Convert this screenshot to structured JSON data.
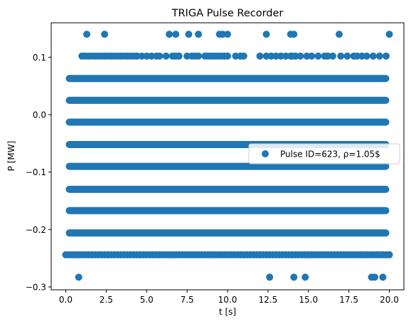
{
  "chart_data": {
    "type": "scatter",
    "title": "TRIGA Pulse Recorder",
    "xlabel": "t [s]",
    "ylabel": "P [MW]",
    "xlim": [
      -0.9,
      20.9
    ],
    "ylim": [
      -0.305,
      0.16
    ],
    "xticks": [
      0.0,
      2.5,
      5.0,
      7.5,
      10.0,
      12.5,
      15.0,
      17.5,
      20.0
    ],
    "xtick_labels": [
      "0.0",
      "2.5",
      "5.0",
      "7.5",
      "10.0",
      "12.5",
      "15.0",
      "17.5",
      "20.0"
    ],
    "yticks": [
      0.1,
      0.0,
      -0.1,
      -0.2,
      -0.3
    ],
    "ytick_labels": [
      "0.1",
      "0.0",
      "−0.1",
      "−0.2",
      "−0.3"
    ],
    "grid": false,
    "legend_position": "center-right",
    "color": "#1f77b4",
    "series": [
      {
        "name": "Pulse ID=623, ρ=1.05$",
        "dense_levels": [
          {
            "y": 0.063,
            "x_start": 0.0,
            "x_end": 20.0
          },
          {
            "y": 0.025,
            "x_start": 0.0,
            "x_end": 20.0
          },
          {
            "y": -0.013,
            "x_start": 0.0,
            "x_end": 20.0
          },
          {
            "y": -0.052,
            "x_start": 0.0,
            "x_end": 20.0
          },
          {
            "y": -0.09,
            "x_start": 0.0,
            "x_end": 20.0
          },
          {
            "y": -0.13,
            "x_start": 0.0,
            "x_end": 20.0
          },
          {
            "y": -0.167,
            "x_start": 0.0,
            "x_end": 20.0
          },
          {
            "y": -0.206,
            "x_start": 0.0,
            "x_end": 20.0
          }
        ],
        "level_points": [
          {
            "y": -0.244,
            "x": [
              0.0,
              0.2,
              0.4,
              0.6,
              0.8,
              1.0,
              1.2,
              1.4,
              1.6,
              1.8,
              2.0,
              2.2,
              2.4,
              2.6,
              2.8,
              3.0,
              3.2,
              3.4,
              3.6,
              3.8,
              4.0,
              4.2,
              4.4,
              4.6,
              4.8,
              5.0,
              5.2,
              5.4,
              5.6,
              5.8,
              6.0,
              6.2,
              6.4,
              6.6,
              6.8,
              7.0,
              7.2,
              7.4,
              7.6,
              7.8,
              8.0,
              8.2,
              8.4,
              8.6,
              8.8,
              9.0,
              9.2,
              9.4,
              9.6,
              9.8,
              10.0,
              10.2,
              10.4,
              10.6,
              10.8,
              11.0,
              11.2,
              11.4,
              11.6,
              11.8,
              12.0,
              12.2,
              12.4,
              12.6,
              12.8,
              13.0,
              13.2,
              13.4,
              13.6,
              13.8,
              14.0,
              14.2,
              14.4,
              14.6,
              14.8,
              15.0,
              15.2,
              15.4,
              15.6,
              15.8,
              16.0,
              16.2,
              16.4,
              16.6,
              16.8,
              17.0,
              17.2,
              17.4,
              17.6,
              17.8,
              18.0,
              18.2,
              18.4,
              18.6,
              18.8,
              19.0,
              19.2,
              19.4,
              19.6,
              19.8,
              20.0
            ]
          },
          {
            "y": 0.102,
            "x": [
              1.0,
              1.2,
              1.4,
              1.6,
              1.8,
              2.0,
              2.2,
              2.4,
              2.6,
              2.8,
              3.0,
              3.2,
              3.4,
              3.6,
              3.8,
              4.0,
              4.2,
              4.4,
              4.7,
              5.0,
              5.3,
              5.6,
              5.8,
              6.2,
              6.6,
              6.8,
              7.0,
              7.5,
              7.8,
              8.0,
              8.2,
              8.6,
              8.8,
              9.0,
              9.2,
              9.4,
              9.6,
              9.8,
              10.0,
              10.5,
              10.8,
              11.0,
              12.0,
              12.4,
              12.7,
              13.0,
              13.3,
              13.6,
              13.9,
              14.0,
              14.2,
              14.5,
              14.9,
              15.2,
              15.6,
              16.0,
              16.2,
              16.5,
              17.0,
              17.4,
              17.8,
              18.0,
              18.3,
              18.6,
              19.0,
              19.4,
              19.8
            ]
          },
          {
            "y": 0.14,
            "x": [
              1.3,
              2.4,
              6.4,
              6.8,
              7.6,
              8.2,
              9.5,
              9.7,
              10.0,
              12.4,
              13.9,
              14.1,
              16.9,
              20.0
            ]
          },
          {
            "y": -0.283,
            "x": [
              0.8,
              12.6,
              14.1,
              14.8,
              18.9,
              19.1,
              19.6
            ]
          }
        ]
      }
    ]
  }
}
